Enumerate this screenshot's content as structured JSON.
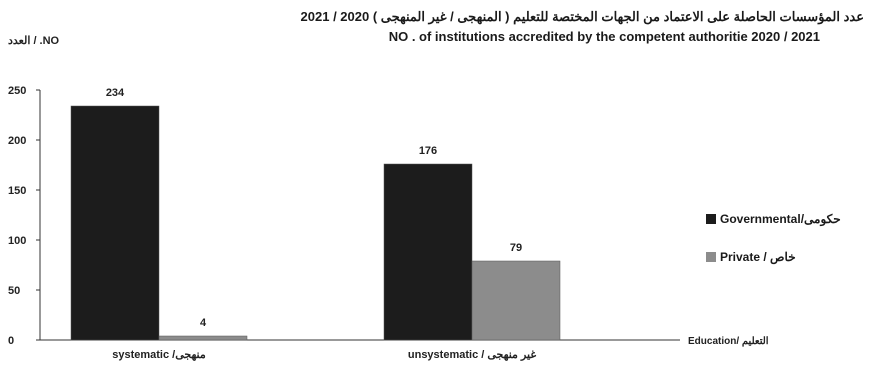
{
  "chart_data": {
    "type": "bar",
    "title_ar": "عدد المؤسسات الحاصلة على الاعتماد من الجهات المختصة للتعليم ( المنهجى / غير المنهجى ) 2020 / 2021",
    "title_en": "NO . of institutions accredited by the competent authoritie   2020 / 2021",
    "ylabel": "العدد / .NO",
    "xlabel": "Education/ التعليم",
    "categories": [
      "systematic /منهجى",
      "unsystematic / غير منهجى"
    ],
    "series": [
      {
        "name": "Governmental/حكومى",
        "color": "#1c1c1c",
        "values": [
          234,
          176
        ]
      },
      {
        "name": "Private / خاص",
        "color": "#8c8c8c",
        "values": [
          4,
          79
        ]
      }
    ],
    "yticks": [
      0,
      50,
      100,
      150,
      200,
      250
    ],
    "ylim": [
      0,
      250
    ],
    "legend_position": "right",
    "grid": false
  }
}
